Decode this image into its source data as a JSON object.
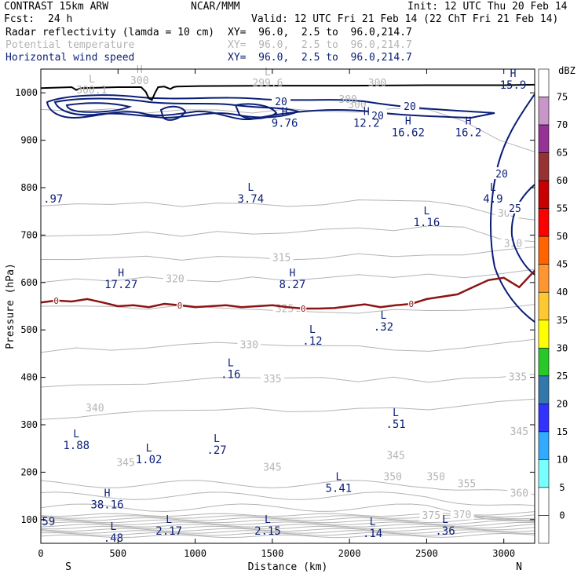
{
  "header": {
    "model": "CONTRAST 15km ARW",
    "center": "NCAR/MMM",
    "init": "Init: 12 UTC Thu 20 Feb 14",
    "fcst_label": "Fcst:",
    "fcst_value": "24 h",
    "valid": "Valid: 12 UTC Fri 21 Feb 14 (22 ChT Fri 21 Feb 14)",
    "fields": [
      {
        "name": "Radar reflectivity (lamda = 10 cm)",
        "xy": "XY=  96.0,  2.5 to  96.0,214.7",
        "color": "#000000"
      },
      {
        "name": "Potential temperature",
        "xy": "XY=  96.0,  2.5 to  96.0,214.7",
        "color": "#b4b4b4"
      },
      {
        "name": "Horizontal wind speed",
        "xy": "XY=  96.0,  2.5 to  96.0,214.7",
        "color": "#0a1e78"
      }
    ]
  },
  "colors": {
    "theta": "#b4b4b4",
    "wind": "#0a1e78",
    "zero_line": "#8c1414",
    "terrain": "#000000"
  },
  "chart_data": {
    "type": "cross-section",
    "xlabel": "Distance (km)",
    "ylabel": "Pressure (hPa)",
    "xlim": [
      0,
      3200
    ],
    "ylim": [
      1050,
      50
    ],
    "x_ticks": [
      0,
      500,
      1000,
      1500,
      2000,
      2500,
      3000
    ],
    "y_ticks": [
      100,
      200,
      300,
      400,
      500,
      600,
      700,
      800,
      900,
      1000
    ],
    "x_ends": {
      "left": "S",
      "right": "N"
    },
    "theta_isentropes": [
      {
        "label": "340",
        "km": 350,
        "hPa": 335,
        "y": [
          315,
          320,
          325,
          325,
          330,
          335,
          335,
          330,
          330,
          330,
          335,
          330,
          340,
          345,
          350
        ]
      },
      {
        "label": "335",
        "km": 1500,
        "hPa": 396,
        "y": [
          375,
          380,
          385,
          390,
          393,
          396,
          398,
          396,
          395,
          395,
          396,
          392,
          400,
          405,
          410
        ]
      },
      {
        "label": "330",
        "km": 1350,
        "hPa": 468,
        "y": [
          455,
          460,
          462,
          465,
          468,
          470,
          470,
          468,
          465,
          462,
          462,
          460,
          465,
          470,
          475
        ]
      },
      {
        "label": "325",
        "km": 1580,
        "hPa": 544,
        "y": [
          545,
          548,
          548,
          548,
          548,
          548,
          546,
          544,
          542,
          540,
          540,
          540,
          545,
          550,
          555
        ]
      },
      {
        "label": "320",
        "km": 870,
        "hPa": 607,
        "y": [
          605,
          607,
          607,
          607,
          607,
          605,
          607,
          608,
          610,
          612,
          614,
          615,
          615,
          620,
          625
        ]
      },
      {
        "label": "315",
        "km": 1560,
        "hPa": 652,
        "y": [
          650,
          652,
          652,
          652,
          652,
          652,
          652,
          652,
          655,
          657,
          658,
          660,
          660,
          665,
          670
        ]
      },
      {
        "label": "310",
        "km": 3060,
        "hPa": 682,
        "y": [
          700,
          702,
          702,
          702,
          702,
          703,
          705,
          707,
          710,
          712,
          713,
          715,
          712,
          690,
          682
        ]
      },
      {
        "label": "305",
        "km": 3020,
        "hPa": 745,
        "y": [
          760,
          762,
          765,
          765,
          765,
          765,
          765,
          765,
          768,
          770,
          772,
          775,
          765,
          745,
          735
        ]
      },
      {
        "label": "300",
        "km": 2050,
        "hPa": 975,
        "y": [
          960,
          962,
          962,
          962,
          962,
          962,
          962,
          962,
          962,
          962,
          962,
          960,
          940,
          900,
          880
        ]
      }
    ],
    "theta_upper_labels": [
      {
        "text": "375",
        "km": 2530,
        "hPa": 108
      },
      {
        "text": "370",
        "km": 2730,
        "hPa": 110
      },
      {
        "text": "360",
        "km": 3100,
        "hPa": 155
      },
      {
        "text": "355",
        "km": 2760,
        "hPa": 175
      },
      {
        "text": "350",
        "km": 2280,
        "hPa": 190
      },
      {
        "text": "350",
        "km": 2560,
        "hPa": 190
      },
      {
        "text": "345",
        "km": 550,
        "hPa": 220
      },
      {
        "text": "345",
        "km": 1500,
        "hPa": 210
      },
      {
        "text": "345",
        "km": 2300,
        "hPa": 235
      },
      {
        "text": "345",
        "km": 3100,
        "hPa": 285
      },
      {
        "text": "335",
        "km": 3090,
        "hPa": 400
      }
    ],
    "wind_speed_contours": [
      {
        "label": "20",
        "level": 20
      },
      {
        "label": "25",
        "level": 25
      }
    ],
    "zero_degree_line": {
      "label": "0",
      "x": [
        0,
        100,
        200,
        300,
        400,
        500,
        600,
        700,
        800,
        900,
        1000,
        1100,
        1200,
        1300,
        1400,
        1500,
        1600,
        1700,
        1800,
        1900,
        2000,
        2100,
        2200,
        2300,
        2400,
        2500,
        2600,
        2700,
        2800,
        2900,
        3000,
        3100,
        3200
      ],
      "y": [
        558,
        562,
        560,
        565,
        558,
        550,
        552,
        548,
        555,
        552,
        548,
        550,
        552,
        548,
        550,
        552,
        548,
        545,
        545,
        546,
        550,
        554,
        548,
        552,
        555,
        565,
        570,
        575,
        590,
        605,
        610,
        590,
        625
      ]
    },
    "terrain": {
      "x": [
        0,
        200,
        230,
        260,
        500,
        650,
        680,
        700,
        720,
        740,
        760,
        800,
        840,
        860,
        880,
        1000,
        1500,
        2000,
        2500,
        3000,
        3200
      ],
      "y": [
        1010,
        1012,
        1006,
        1010,
        1012,
        1012,
        1002,
        988,
        985,
        1000,
        1012,
        1013,
        1008,
        1012,
        1013,
        1014,
        1015,
        1015,
        1016,
        1016,
        1017
      ]
    },
    "extrema_labels": [
      {
        "type": "L",
        "value": ".48",
        "km": 470,
        "hPa": 75
      },
      {
        "type": "",
        "value": "59",
        "km": 50,
        "hPa": 110
      },
      {
        "type": "L",
        "value": "2.17",
        "km": 830,
        "hPa": 90
      },
      {
        "type": "L",
        "value": "2.15",
        "km": 1470,
        "hPa": 90
      },
      {
        "type": "L",
        "value": ".14",
        "km": 2150,
        "hPa": 85
      },
      {
        "type": "L",
        "value": ".36",
        "km": 2620,
        "hPa": 90
      },
      {
        "type": "H",
        "value": "38.16",
        "km": 430,
        "hPa": 145
      },
      {
        "type": "L",
        "value": "5.41",
        "km": 1930,
        "hPa": 180
      },
      {
        "type": "L",
        "value": "1.02",
        "km": 700,
        "hPa": 240
      },
      {
        "type": "L",
        "value": "1.88",
        "km": 230,
        "hPa": 270
      },
      {
        "type": "L",
        "value": ".27",
        "km": 1140,
        "hPa": 260
      },
      {
        "type": "L",
        "value": ".51",
        "km": 2300,
        "hPa": 315
      },
      {
        "type": "L",
        "value": ".16",
        "km": 1230,
        "hPa": 420
      },
      {
        "type": "L",
        "value": ".12",
        "km": 1760,
        "hPa": 490
      },
      {
        "type": "L",
        "value": ".32",
        "km": 2220,
        "hPa": 520
      },
      {
        "type": "H",
        "value": "17.27",
        "km": 520,
        "hPa": 610
      },
      {
        "type": "H",
        "value": "8.27",
        "km": 1630,
        "hPa": 610
      },
      {
        "type": "L",
        "value": "1.16",
        "km": 2500,
        "hPa": 740
      },
      {
        "type": "",
        "value": ".97",
        "km": 80,
        "hPa": 790
      },
      {
        "type": "L",
        "value": "3.74",
        "km": 1360,
        "hPa": 790
      },
      {
        "type": "L",
        "value": "4.9",
        "km": 2930,
        "hPa": 790
      },
      {
        "type": "H",
        "value": "16.62",
        "km": 2380,
        "hPa": 930
      },
      {
        "type": "H",
        "value": "16.2",
        "km": 2770,
        "hPa": 930
      },
      {
        "type": "H",
        "value": "9.76",
        "km": 1580,
        "hPa": 950
      },
      {
        "type": "H",
        "value": "12.2",
        "km": 2110,
        "hPa": 950
      },
      {
        "type": "H",
        "value": "15.9",
        "km": 3060,
        "hPa": 1030
      }
    ],
    "theta_extrema_labels": [
      {
        "type": "L",
        "value": "300.1",
        "km": 330,
        "hPa": 1015
      },
      {
        "type": "L",
        "value": "299.6",
        "km": 1470,
        "hPa": 1030
      },
      {
        "type": "",
        "value": "300",
        "km": 1990,
        "hPa": 995
      },
      {
        "type": "",
        "value": "300",
        "km": 2180,
        "hPa": 1030
      },
      {
        "type": "H",
        "value": "300",
        "km": 640,
        "hPa": 1035
      }
    ],
    "colorbar": {
      "unit": "dBZ",
      "ticks": [
        "75",
        "70",
        "65",
        "60",
        "55",
        "50",
        "45",
        "40",
        "35",
        "30",
        "25",
        "20",
        "15",
        "10",
        "5",
        "0"
      ],
      "colors": [
        "#ffffff",
        "#c896c8",
        "#963296",
        "#963232",
        "#c80000",
        "#ff0000",
        "#ff6400",
        "#ff9632",
        "#ffc832",
        "#ffff00",
        "#28c828",
        "#3278aa",
        "#3232ff",
        "#32aaff",
        "#78ffff",
        "#ffffff",
        "#ffffff"
      ]
    }
  }
}
